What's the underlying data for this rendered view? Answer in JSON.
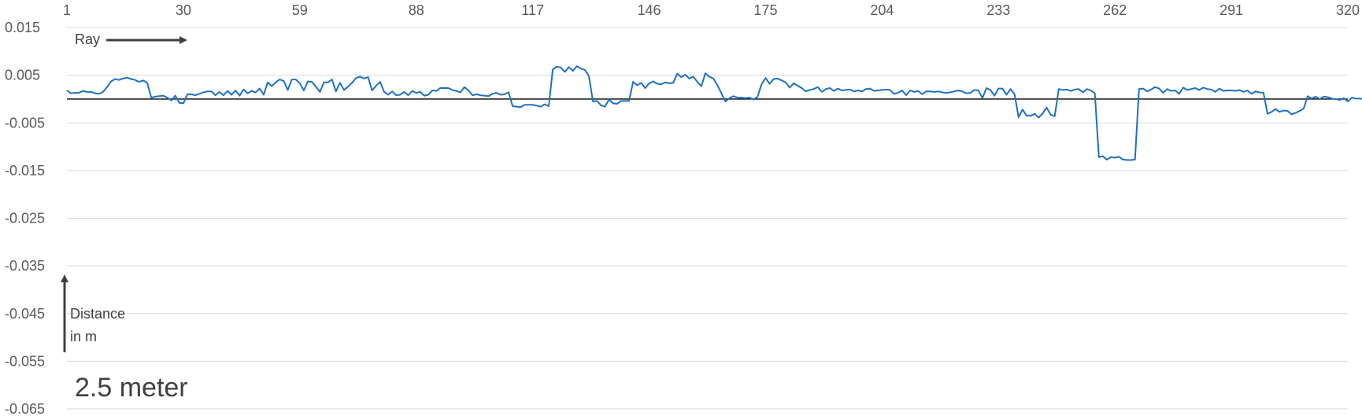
{
  "colors": {
    "series": "#1f70c1",
    "grid": "#d9d9d9",
    "zero": "#000000",
    "text": "#595959",
    "arrow": "#404040"
  },
  "annotations": {
    "ray_label": "Ray",
    "distance_line1": "Distance",
    "distance_line2": "in m",
    "condition_label": "2.5 meter"
  },
  "chart_data": {
    "type": "line",
    "title": "",
    "xlabel": "",
    "ylabel": "",
    "x_axis_position": "top",
    "x_ticks": [
      1,
      30,
      59,
      88,
      117,
      146,
      175,
      204,
      233,
      262,
      291,
      320
    ],
    "xlim": [
      1,
      320
    ],
    "y_ticks": [
      0.015,
      0.005,
      -0.005,
      -0.015,
      -0.025,
      -0.035,
      -0.045,
      -0.055,
      -0.065
    ],
    "y_tick_labels": [
      "0.015",
      "0.005",
      "-0.005",
      "-0.015",
      "-0.025",
      "-0.035",
      "-0.045",
      "-0.055",
      "-0.065"
    ],
    "ylim": [
      -0.065,
      0.015
    ],
    "grid": true,
    "reference_line_y": 0,
    "series": [
      {
        "values": [
          0.0018,
          0.0012,
          0.0013,
          0.0013,
          0.0017,
          0.0015,
          0.0015,
          0.0012,
          0.0011,
          0.0015,
          0.0025,
          0.0037,
          0.0042,
          0.004,
          0.0043,
          0.0045,
          0.0042,
          0.004,
          0.0036,
          0.0039,
          0.0034,
          0.0003,
          0.0005,
          0.0006,
          0.0007,
          0.0003,
          -0.0003,
          0.0007,
          -0.0008,
          -0.0009,
          0.001,
          0.001,
          0.0008,
          0.0011,
          0.0014,
          0.0016,
          0.0016,
          0.0008,
          0.0015,
          0.0008,
          0.0017,
          0.0009,
          0.0018,
          0.0007,
          0.002,
          0.0012,
          0.0017,
          0.0014,
          0.0022,
          0.0009,
          0.0035,
          0.0027,
          0.0035,
          0.0041,
          0.0038,
          0.0019,
          0.0041,
          0.0041,
          0.0033,
          0.0018,
          0.0037,
          0.0036,
          0.0026,
          0.0015,
          0.0035,
          0.0035,
          0.0041,
          0.0016,
          0.0034,
          0.0019,
          0.0026,
          0.0034,
          0.0044,
          0.0047,
          0.0043,
          0.0046,
          0.0018,
          0.0028,
          0.0036,
          0.0015,
          0.0009,
          0.0016,
          0.0008,
          0.0009,
          0.0015,
          0.0008,
          0.0017,
          0.0013,
          0.0015,
          0.0007,
          0.0009,
          0.0018,
          0.0017,
          0.0023,
          0.0023,
          0.0023,
          0.0019,
          0.0017,
          0.0014,
          0.0025,
          0.0018,
          0.0008,
          0.001,
          0.0008,
          0.0007,
          0.0006,
          0.0011,
          0.0013,
          0.0009,
          0.001,
          0.0014,
          -0.0015,
          -0.0016,
          -0.0017,
          -0.0012,
          -0.0012,
          -0.0012,
          -0.0014,
          -0.0016,
          -0.0011,
          -0.0015,
          0.0062,
          0.0068,
          0.0066,
          0.0057,
          0.0067,
          0.0059,
          0.0069,
          0.0064,
          0.0061,
          0.0048,
          -0.0005,
          -0.0004,
          -0.0013,
          -0.0016,
          -0.0001,
          -0.0009,
          -0.001,
          -0.0004,
          -0.0004,
          -0.0004,
          0.0036,
          0.0029,
          0.0034,
          0.0023,
          0.0033,
          0.0037,
          0.0032,
          0.0031,
          0.0035,
          0.0033,
          0.0034,
          0.0053,
          0.0046,
          0.0051,
          0.0043,
          0.0047,
          0.0036,
          0.0027,
          0.0054,
          0.0047,
          0.0043,
          0.0029,
          0.0012,
          -0.0005,
          0.0002,
          0.0006,
          0.0003,
          0.0003,
          0.0002,
          0.0003,
          -0.0001,
          0.0005,
          0.0031,
          0.0044,
          0.0032,
          0.0042,
          0.0043,
          0.0039,
          0.0035,
          0.0024,
          0.0033,
          0.0028,
          0.0023,
          0.0016,
          0.0019,
          0.0021,
          0.0025,
          0.0015,
          0.0021,
          0.0023,
          0.0017,
          0.0022,
          0.0018,
          0.0019,
          0.002,
          0.0016,
          0.0018,
          0.0016,
          0.0021,
          0.0022,
          0.0017,
          0.0018,
          0.0019,
          0.002,
          0.0019,
          0.0011,
          0.0013,
          0.0018,
          0.0008,
          0.0018,
          0.0015,
          0.0017,
          0.001,
          0.0016,
          0.0016,
          0.0015,
          0.0016,
          0.0014,
          0.0013,
          0.0014,
          0.0016,
          0.0018,
          0.0016,
          0.0012,
          0.0013,
          0.0019,
          0.0018,
          0.0002,
          0.0023,
          0.0019,
          0.0007,
          0.0022,
          0.0022,
          0.0009,
          0.0021,
          0.001,
          -0.0038,
          -0.0022,
          -0.0035,
          -0.0035,
          -0.0031,
          -0.0039,
          -0.003,
          -0.0018,
          -0.0033,
          -0.0036,
          0.0021,
          0.0019,
          0.002,
          0.0017,
          0.002,
          0.0021,
          0.0014,
          0.0021,
          0.0018,
          0.0012,
          -0.0122,
          -0.012,
          -0.0127,
          -0.0122,
          -0.0123,
          -0.0121,
          -0.0127,
          -0.0128,
          -0.0128,
          -0.0127,
          0.0021,
          0.0022,
          0.0016,
          0.002,
          0.0025,
          0.0022,
          0.0013,
          0.0021,
          0.0017,
          0.0018,
          0.0011,
          0.0024,
          0.0019,
          0.0021,
          0.0023,
          0.0019,
          0.0024,
          0.0021,
          0.002,
          0.0015,
          0.0022,
          0.0017,
          0.0018,
          0.0018,
          0.0017,
          0.0019,
          0.0015,
          0.0018,
          0.0011,
          0.0016,
          0.0014,
          0.0013,
          -0.0031,
          -0.0027,
          -0.0021,
          -0.0027,
          -0.0024,
          -0.0025,
          -0.0032,
          -0.0029,
          -0.0025,
          -0.002,
          0.0006,
          0.0001,
          0.0005,
          0.0,
          0.0005,
          0.0004,
          0.0001,
          0.0,
          -0.0002,
          0.0002,
          -0.0005,
          0.0003,
          0.0001,
          0.0001,
          0.0,
          -0.0011,
          0.0002,
          -0.001,
          0.0002,
          0.0,
          0.0001,
          0.0004
        ]
      }
    ]
  }
}
